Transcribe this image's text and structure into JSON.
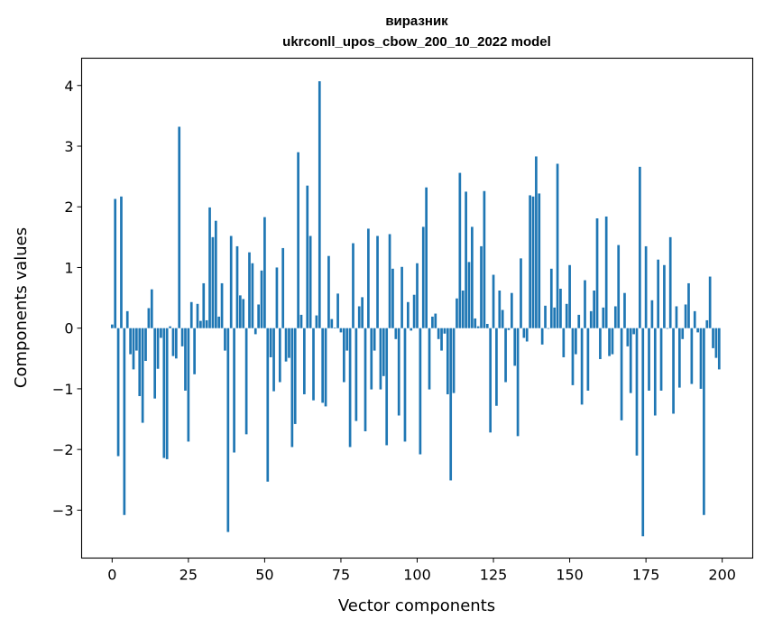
{
  "chart_data": {
    "type": "bar",
    "title_lines": [
      "виразник",
      "ukrconll_upos_cbow_200_10_2022 model"
    ],
    "xlabel": "Vector components",
    "ylabel": "Components values",
    "xlim": [
      -10,
      210
    ],
    "ylim": [
      -3.79,
      4.45
    ],
    "xticks": [
      0,
      25,
      50,
      75,
      100,
      125,
      150,
      175,
      200
    ],
    "xtick_labels": [
      "0",
      "25",
      "50",
      "75",
      "100",
      "125",
      "150",
      "175",
      "200"
    ],
    "yticks": [
      -3,
      -2,
      -1,
      0,
      1,
      2,
      3,
      4
    ],
    "ytick_labels": [
      "−3",
      "−2",
      "−1",
      "0",
      "1",
      "2",
      "3",
      "4"
    ],
    "grid": false,
    "bar_color": "#1f77b4",
    "bar_width": 0.8,
    "x_start": 0,
    "values": [
      0.06,
      2.13,
      -2.11,
      2.17,
      -3.08,
      0.28,
      -0.43,
      -0.68,
      -0.37,
      -1.12,
      -1.56,
      -0.54,
      0.33,
      0.64,
      -1.16,
      -0.67,
      -0.16,
      -2.14,
      -2.16,
      0.03,
      -0.46,
      -0.5,
      3.32,
      -0.3,
      -1.03,
      -1.87,
      0.43,
      -0.76,
      0.4,
      0.12,
      0.74,
      0.13,
      1.99,
      1.5,
      1.77,
      0.19,
      0.74,
      -0.37,
      -3.36,
      1.52,
      -2.05,
      1.35,
      0.54,
      0.48,
      -1.75,
      1.25,
      1.07,
      -0.1,
      0.39,
      0.95,
      1.83,
      -2.53,
      -0.48,
      -1.04,
      1.0,
      -0.89,
      1.32,
      -0.55,
      -0.49,
      -1.96,
      -1.58,
      2.9,
      0.22,
      -1.09,
      2.35,
      1.52,
      -1.19,
      0.21,
      4.07,
      -1.23,
      -1.29,
      1.19,
      0.15,
      0.01,
      0.57,
      -0.07,
      -0.89,
      -0.37,
      -1.96,
      1.4,
      -1.53,
      0.36,
      0.51,
      -1.7,
      1.64,
      -1.01,
      -0.37,
      1.52,
      -1.01,
      -0.79,
      -1.93,
      1.55,
      0.98,
      -0.18,
      -1.44,
      1.01,
      -1.87,
      0.43,
      -0.04,
      0.55,
      1.07,
      -2.08,
      1.67,
      2.32,
      -1.01,
      0.19,
      0.24,
      -0.18,
      -0.37,
      -0.09,
      -1.09,
      -2.51,
      -1.07,
      0.49,
      2.56,
      0.62,
      2.25,
      1.09,
      1.67,
      0.16,
      0.03,
      1.35,
      2.26,
      0.07,
      -1.72,
      0.88,
      -1.28,
      0.62,
      0.3,
      -0.89,
      -0.03,
      0.58,
      -0.62,
      -1.78,
      1.15,
      -0.16,
      -0.22,
      2.19,
      2.17,
      2.83,
      2.22,
      -0.27,
      0.37,
      -0.01,
      0.98,
      0.34,
      2.71,
      0.65,
      -0.48,
      0.4,
      1.04,
      -0.94,
      -0.43,
      0.22,
      -1.26,
      0.79,
      -1.03,
      0.28,
      0.62,
      1.81,
      -0.51,
      0.34,
      1.84,
      -0.46,
      -0.43,
      0.36,
      1.37,
      -1.52,
      0.58,
      -0.3,
      -1.07,
      -0.1,
      -2.1,
      2.66,
      -3.43,
      1.35,
      -1.03,
      0.46,
      -1.44,
      1.13,
      -1.03,
      1.04,
      -0.01,
      1.5,
      -1.41,
      0.36,
      -0.98,
      -0.18,
      0.39,
      0.74,
      -0.92,
      0.28,
      -0.07,
      -1.0,
      -3.08,
      0.13,
      0.85,
      -0.33,
      -0.49,
      -0.68
    ]
  }
}
